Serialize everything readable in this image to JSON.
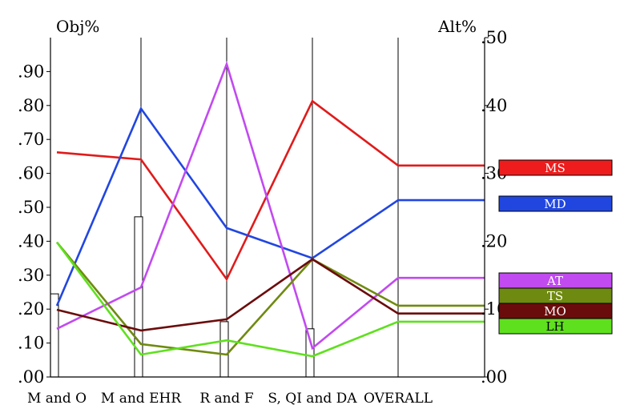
{
  "chart_data": {
    "type": "line",
    "left_axis_title": "Obj%",
    "right_axis_title": "Alt%",
    "categories": [
      "M and O",
      "M and EHR",
      "R and F",
      "S, QI and DA",
      "OVERALL"
    ],
    "left_axis": {
      "ylim": [
        0,
        1.0
      ],
      "ticks": [
        0.0,
        0.1,
        0.2,
        0.3,
        0.4,
        0.5,
        0.6,
        0.7,
        0.8,
        0.9
      ],
      "tick_labels": [
        ".00",
        ".10",
        ".20",
        ".30",
        ".40",
        ".50",
        ".60",
        ".70",
        ".80",
        ".90"
      ]
    },
    "right_axis": {
      "ylim": [
        0,
        0.5
      ],
      "ticks": [
        0.0,
        0.1,
        0.2,
        0.3,
        0.4,
        0.5
      ],
      "tick_labels": [
        ".00",
        ".10",
        ".20",
        ".30",
        ".40",
        ".50"
      ]
    },
    "bars": {
      "axis": "left",
      "values": [
        0.245,
        0.472,
        0.163,
        0.142,
        null
      ]
    },
    "series": [
      {
        "name": "MS",
        "color": "#e01b1b",
        "values": [
          0.662,
          0.641,
          0.288,
          0.813,
          0.623
        ]
      },
      {
        "name": "MD",
        "color": "#2146e0",
        "values": [
          0.21,
          0.791,
          0.439,
          0.35,
          0.521
        ]
      },
      {
        "name": "AT",
        "color": "#c14af0",
        "values": [
          0.142,
          0.264,
          0.922,
          0.085,
          0.292
        ]
      },
      {
        "name": "TS",
        "color": "#6f8a10",
        "values": [
          0.397,
          0.097,
          0.066,
          0.347,
          0.21
        ]
      },
      {
        "name": "MO",
        "color": "#6b0c0c",
        "values": [
          0.198,
          0.137,
          0.17,
          0.347,
          0.187
        ]
      },
      {
        "name": "LH",
        "color": "#5fe01e",
        "values": [
          0.397,
          0.066,
          0.108,
          0.061,
          0.163
        ]
      }
    ],
    "legend": [
      {
        "label": "MS",
        "fill": "#ee1c1c",
        "text_color": "#ffffff"
      },
      {
        "label": "MD",
        "fill": "#2146e0",
        "text_color": "#ffffff"
      },
      {
        "label": "AT",
        "fill": "#c14af0",
        "text_color": "#ffffff"
      },
      {
        "label": "TS",
        "fill": "#6f8a10",
        "text_color": "#ffffff"
      },
      {
        "label": "MO",
        "fill": "#6b0c0c",
        "text_color": "#ffffff"
      },
      {
        "label": "LH",
        "fill": "#5fe01e",
        "text_color": "#000000"
      }
    ],
    "grid": "vertical-lines-at-categories",
    "legend_position": "right"
  }
}
